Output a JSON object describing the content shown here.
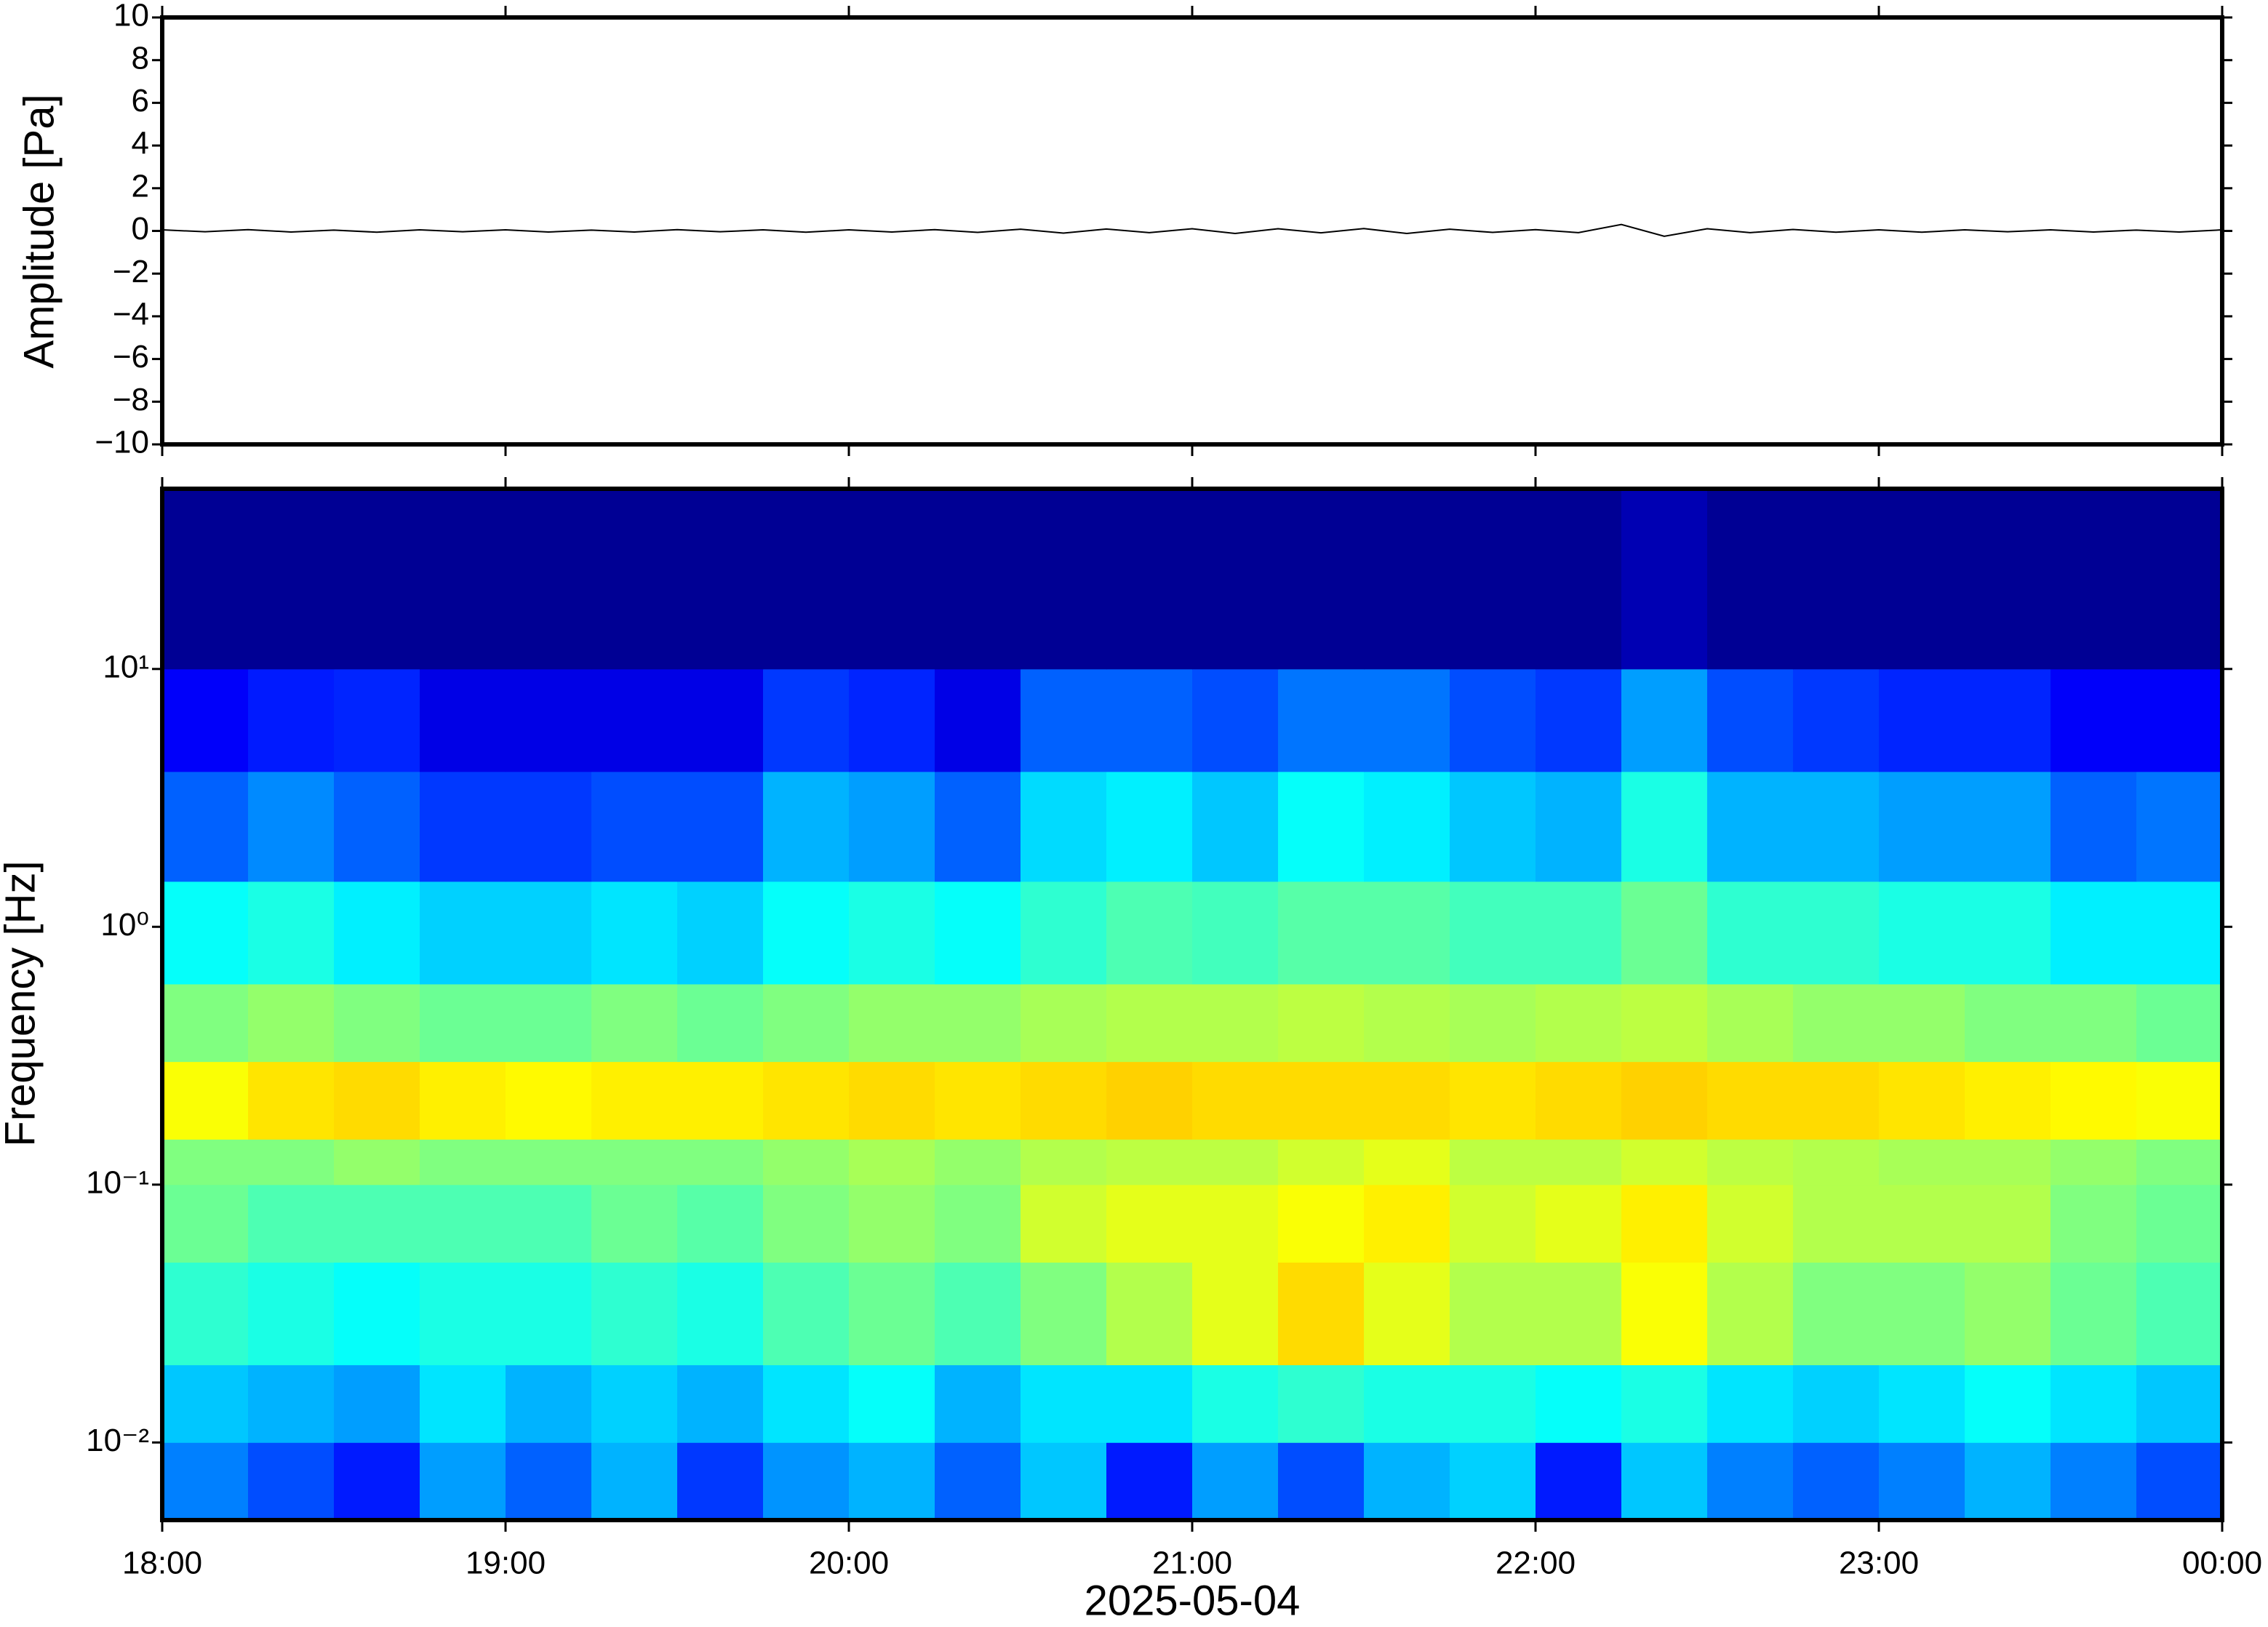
{
  "chart_data": [
    {
      "type": "line",
      "ylabel": "Amplitude [Pa]",
      "xlim": [
        18,
        24
      ],
      "ylim": [
        -10,
        10
      ],
      "yticks": [
        {
          "value": -10,
          "label": "−10"
        },
        {
          "value": -8,
          "label": "−8"
        },
        {
          "value": -6,
          "label": "−6"
        },
        {
          "value": -4,
          "label": "−4"
        },
        {
          "value": -2,
          "label": "−2"
        },
        0,
        2,
        4,
        6,
        8,
        10
      ],
      "x": [
        18,
        18.125,
        18.25,
        18.375,
        18.5,
        18.625,
        18.75,
        18.875,
        19,
        19.125,
        19.25,
        19.375,
        19.5,
        19.625,
        19.75,
        19.875,
        20,
        20.125,
        20.25,
        20.375,
        20.5,
        20.625,
        20.75,
        20.875,
        21,
        21.125,
        21.25,
        21.375,
        21.5,
        21.625,
        21.75,
        21.875,
        22,
        22.125,
        22.25,
        22.375,
        22.5,
        22.625,
        22.75,
        22.875,
        23,
        23.125,
        23.25,
        23.375,
        23.5,
        23.625,
        23.75,
        23.875,
        24
      ],
      "series": [
        {
          "color": "#000000",
          "values": [
            0.05,
            -0.04,
            0.06,
            -0.05,
            0.04,
            -0.06,
            0.05,
            -0.04,
            0.05,
            -0.05,
            0.04,
            -0.05,
            0.06,
            -0.04,
            0.05,
            -0.06,
            0.05,
            -0.05,
            0.06,
            -0.07,
            0.08,
            -0.1,
            0.09,
            -0.08,
            0.1,
            -0.12,
            0.1,
            -0.09,
            0.11,
            -0.12,
            0.08,
            -0.07,
            0.06,
            -0.08,
            0.3,
            -0.25,
            0.1,
            -0.08,
            0.07,
            -0.06,
            0.05,
            -0.06,
            0.05,
            -0.04,
            0.05,
            -0.05,
            0.04,
            -0.05,
            0.05
          ]
        }
      ]
    },
    {
      "type": "heatmap",
      "ylabel": "Frequency [Hz]",
      "xlabel": "2025-05-04",
      "colormap": "jet",
      "log_y": true,
      "xlim": [
        18,
        24
      ],
      "ylim": [
        0.005,
        50
      ],
      "xticks": [
        {
          "value": 18,
          "label": "18:00"
        },
        {
          "value": 19,
          "label": "19:00"
        },
        {
          "value": 20,
          "label": "20:00"
        },
        {
          "value": 21,
          "label": "21:00"
        },
        {
          "value": 22,
          "label": "22:00"
        },
        {
          "value": 23,
          "label": "23:00"
        },
        {
          "value": 24,
          "label": "00:00"
        }
      ],
      "yticks": [
        {
          "value": 0.01,
          "label": "10⁻²"
        },
        {
          "value": 0.1,
          "label": "10⁻¹"
        },
        {
          "value": 1,
          "label": "10⁰"
        },
        {
          "value": 10,
          "label": "10¹"
        }
      ],
      "xbins": [
        18,
        18.25,
        18.5,
        18.75,
        19,
        19.25,
        19.5,
        19.75,
        20,
        20.25,
        20.5,
        20.75,
        21,
        21.25,
        21.5,
        21.75,
        22,
        22.25,
        22.5,
        22.75,
        23,
        23.25,
        23.5,
        23.75,
        24
      ],
      "ybins": [
        0.005,
        0.01,
        0.02,
        0.05,
        0.1,
        0.15,
        0.3,
        0.6,
        1.5,
        4,
        10,
        50
      ],
      "values": [
        [
          0.25,
          0.2,
          0.15,
          0.28,
          0.22,
          0.3,
          0.18,
          0.27,
          0.3,
          0.22,
          0.32,
          0.15,
          0.28,
          0.2,
          0.3,
          0.33,
          0.15,
          0.32,
          0.25,
          0.22,
          0.25,
          0.3,
          0.25,
          0.2
        ],
        [
          0.32,
          0.3,
          0.28,
          0.35,
          0.3,
          0.33,
          0.3,
          0.35,
          0.38,
          0.3,
          0.35,
          0.35,
          0.4,
          0.42,
          0.4,
          0.4,
          0.38,
          0.4,
          0.35,
          0.33,
          0.35,
          0.38,
          0.35,
          0.32
        ],
        [
          0.42,
          0.4,
          0.38,
          0.4,
          0.4,
          0.42,
          0.4,
          0.45,
          0.48,
          0.45,
          0.5,
          0.55,
          0.6,
          0.66,
          0.6,
          0.55,
          0.55,
          0.62,
          0.55,
          0.5,
          0.5,
          0.52,
          0.48,
          0.45
        ],
        [
          0.48,
          0.45,
          0.45,
          0.45,
          0.45,
          0.48,
          0.46,
          0.5,
          0.52,
          0.5,
          0.58,
          0.6,
          0.6,
          0.62,
          0.64,
          0.58,
          0.6,
          0.64,
          0.58,
          0.55,
          0.55,
          0.55,
          0.5,
          0.48
        ],
        [
          0.5,
          0.5,
          0.52,
          0.5,
          0.5,
          0.5,
          0.5,
          0.52,
          0.54,
          0.52,
          0.55,
          0.56,
          0.56,
          0.58,
          0.6,
          0.56,
          0.56,
          0.58,
          0.56,
          0.55,
          0.54,
          0.54,
          0.52,
          0.5
        ],
        [
          0.62,
          0.65,
          0.66,
          0.64,
          0.63,
          0.64,
          0.64,
          0.65,
          0.66,
          0.65,
          0.66,
          0.67,
          0.66,
          0.66,
          0.66,
          0.65,
          0.66,
          0.67,
          0.66,
          0.66,
          0.65,
          0.64,
          0.63,
          0.62
        ],
        [
          0.5,
          0.52,
          0.5,
          0.48,
          0.48,
          0.5,
          0.48,
          0.5,
          0.52,
          0.52,
          0.54,
          0.55,
          0.55,
          0.56,
          0.55,
          0.54,
          0.55,
          0.56,
          0.54,
          0.52,
          0.52,
          0.5,
          0.5,
          0.48
        ],
        [
          0.38,
          0.4,
          0.36,
          0.33,
          0.33,
          0.35,
          0.33,
          0.38,
          0.4,
          0.38,
          0.42,
          0.45,
          0.44,
          0.46,
          0.46,
          0.44,
          0.44,
          0.48,
          0.42,
          0.42,
          0.4,
          0.4,
          0.36,
          0.36
        ],
        [
          0.22,
          0.26,
          0.22,
          0.18,
          0.18,
          0.2,
          0.2,
          0.3,
          0.28,
          0.22,
          0.34,
          0.36,
          0.32,
          0.38,
          0.36,
          0.32,
          0.3,
          0.4,
          0.3,
          0.3,
          0.28,
          0.28,
          0.22,
          0.24
        ],
        [
          0.12,
          0.15,
          0.16,
          0.1,
          0.1,
          0.1,
          0.1,
          0.18,
          0.16,
          0.1,
          0.22,
          0.22,
          0.2,
          0.24,
          0.24,
          0.2,
          0.18,
          0.28,
          0.2,
          0.18,
          0.16,
          0.16,
          0.12,
          0.12
        ],
        [
          0.02,
          0.02,
          0.02,
          0.02,
          0.02,
          0.02,
          0.02,
          0.02,
          0.02,
          0.02,
          0.02,
          0.02,
          0.02,
          0.02,
          0.02,
          0.02,
          0.02,
          0.05,
          0.02,
          0.02,
          0.02,
          0.02,
          0.02,
          0.02
        ]
      ]
    }
  ]
}
